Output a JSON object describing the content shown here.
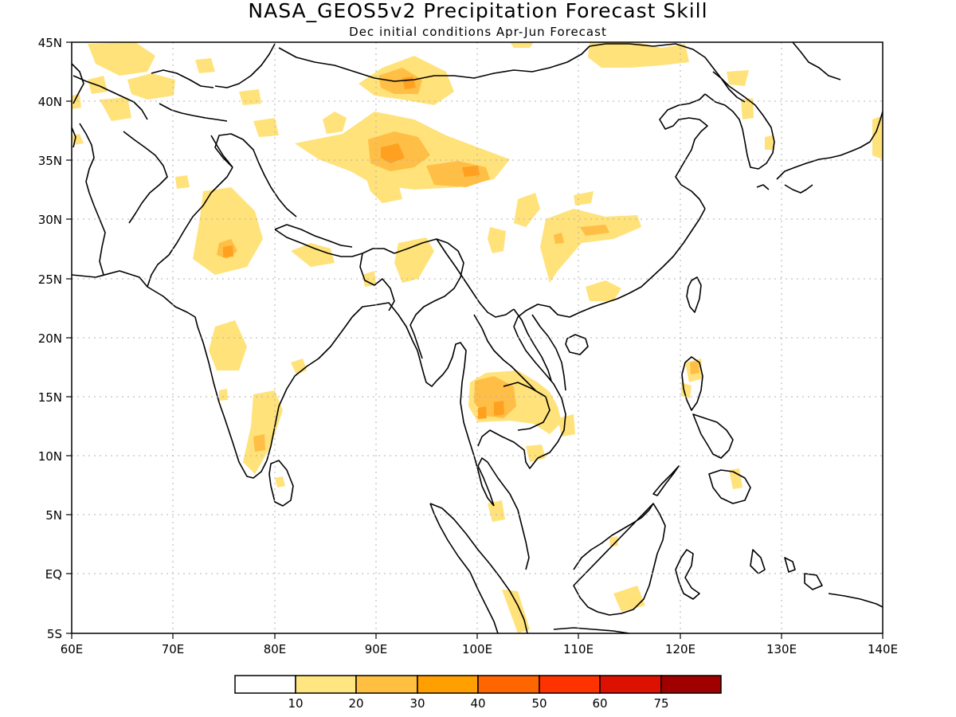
{
  "title": "NASA_GEOS5v2 Precipitation Forecast Skill",
  "subtitle": "Dec initial conditions  Apr-Jun Forecast",
  "map": {
    "lon_range": [
      60,
      140
    ],
    "lat_range": [
      -5,
      45
    ],
    "grid": true,
    "lon_ticks": [
      "60E",
      "70E",
      "80E",
      "90E",
      "100E",
      "110E",
      "120E",
      "130E",
      "140E"
    ],
    "lat_ticks": [
      "45N",
      "40N",
      "35N",
      "30N",
      "25N",
      "20N",
      "15N",
      "10N",
      "5N",
      "EQ",
      "5S"
    ]
  },
  "colorbar": {
    "labels": [
      "10",
      "20",
      "30",
      "40",
      "50",
      "60",
      "75"
    ],
    "colors": [
      "#ffffff",
      "#ffe680",
      "#ffbf40",
      "#ff9f00",
      "#ff6600",
      "#ff3300",
      "#dd1100",
      "#a00000"
    ]
  },
  "colors": {
    "land_outline": "#000000",
    "grid": "#b0b0b0",
    "skill_10_20": "#ffe27a",
    "skill_20_30": "#ffbe45",
    "skill_30_40": "#ff9f10"
  }
}
